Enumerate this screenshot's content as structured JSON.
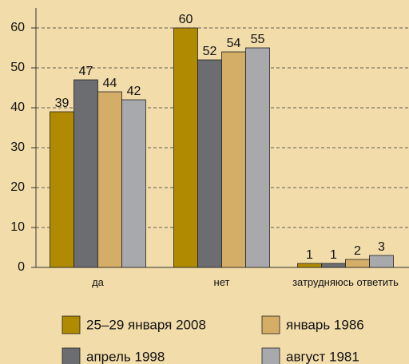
{
  "chart_data": {
    "type": "bar",
    "categories": [
      "да",
      "нет",
      "затрудняюсь ответить"
    ],
    "series": [
      {
        "name": "25–29 января 2008",
        "color": "#b08a00",
        "values": [
          39,
          60,
          1
        ]
      },
      {
        "name": "апрель 1998",
        "color": "#6c6d70",
        "values": [
          47,
          52,
          1
        ]
      },
      {
        "name": "январь 1986",
        "color": "#d4ae66",
        "values": [
          44,
          54,
          2
        ]
      },
      {
        "name": "август 1981",
        "color": "#a8a9ac",
        "values": [
          42,
          55,
          3
        ]
      }
    ],
    "ylim": [
      0,
      65
    ],
    "yticks": [
      0,
      10,
      20,
      30,
      40,
      50,
      60
    ],
    "grid": true
  }
}
